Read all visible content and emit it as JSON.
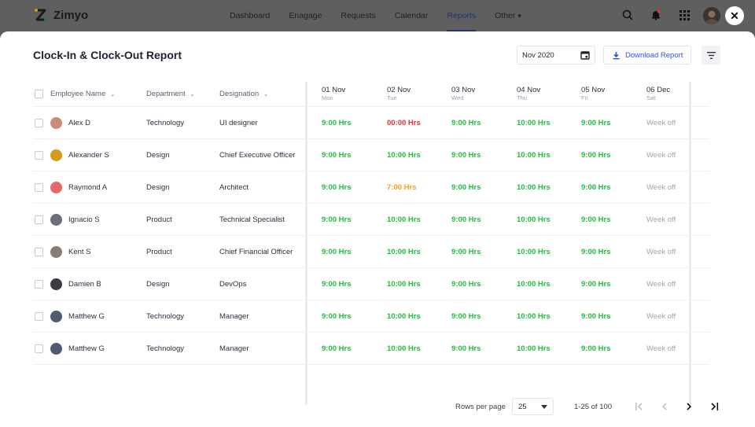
{
  "nav": {
    "brand": "Zimyo",
    "items": [
      "Dashboard",
      "Enagage",
      "Requests",
      "Calendar",
      "Reports",
      "Other"
    ],
    "active": "Reports",
    "other_caret": "⌄"
  },
  "page": {
    "title": "Clock-In & Clock-Out Report",
    "date_value": "Nov 2020",
    "download_label": "Download Report",
    "close_glyph": "✕"
  },
  "table": {
    "headers": {
      "name": "Employee Name",
      "department": "Department",
      "designation": "Designation"
    },
    "sort_glyph": "⌄",
    "days": [
      {
        "date": "01 Nov",
        "dow": "Mon"
      },
      {
        "date": "02 Nov",
        "dow": "Tue"
      },
      {
        "date": "03 Nov",
        "dow": "Wed"
      },
      {
        "date": "04 Nov",
        "dow": "Thu"
      },
      {
        "date": "05 Nov",
        "dow": "Fri"
      },
      {
        "date": "06 Dec",
        "dow": "Sat"
      }
    ],
    "rows": [
      {
        "name": "Alex D",
        "department": "Technology",
        "designation": "UI designer",
        "avatar": "#c98b7a",
        "hours": [
          "9:00 Hrs",
          "00:00 Hrs",
          "9:00 Hrs",
          "10:00 Hrs",
          "9:00 Hrs",
          "Week off"
        ],
        "status": [
          "ok",
          "red",
          "ok",
          "ok",
          "ok",
          "off"
        ]
      },
      {
        "name": "Alexander S",
        "department": "Design",
        "designation": "Chief Executive Officer",
        "avatar": "#d79a1a",
        "hours": [
          "9:00 Hrs",
          "10:00 Hrs",
          "9:00 Hrs",
          "10:00 Hrs",
          "9:00 Hrs",
          "Week off"
        ],
        "status": [
          "ok",
          "ok",
          "ok",
          "ok",
          "ok",
          "off"
        ]
      },
      {
        "name": "Raymond A",
        "department": "Design",
        "designation": "Architect",
        "avatar": "#e26a6a",
        "hours": [
          "9:00 Hrs",
          "7:00 Hrs",
          "9:00 Hrs",
          "10:00 Hrs",
          "9:00 Hrs",
          "Week off"
        ],
        "status": [
          "ok",
          "amber",
          "ok",
          "ok",
          "ok",
          "off"
        ]
      },
      {
        "name": "Ignacio S",
        "department": "Product",
        "designation": "Technical Specialist",
        "avatar": "#6c6f78",
        "hours": [
          "9:00 Hrs",
          "10:00 Hrs",
          "9:00 Hrs",
          "10:00 Hrs",
          "9:00 Hrs",
          "Week off"
        ],
        "status": [
          "ok",
          "ok",
          "ok",
          "ok",
          "ok",
          "off"
        ]
      },
      {
        "name": "Kent S",
        "department": "Product",
        "designation": "Chief Financial Officer",
        "avatar": "#8a7a70",
        "hours": [
          "9:00 Hrs",
          "10:00 Hrs",
          "9:00 Hrs",
          "10:00 Hrs",
          "9:00 Hrs",
          "Week off"
        ],
        "status": [
          "ok",
          "ok",
          "ok",
          "ok",
          "ok",
          "off"
        ]
      },
      {
        "name": "Damien B",
        "department": "Design",
        "designation": "DevOps",
        "avatar": "#3b3b40",
        "hours": [
          "9:00 Hrs",
          "10:00 Hrs",
          "9:00 Hrs",
          "10:00 Hrs",
          "9:00 Hrs",
          "Week off"
        ],
        "status": [
          "ok",
          "ok",
          "ok",
          "ok",
          "ok",
          "off"
        ]
      },
      {
        "name": "Matthew G",
        "department": "Technology",
        "designation": "Manager",
        "avatar": "#4f5b6e",
        "hours": [
          "9:00 Hrs",
          "10:00 Hrs",
          "9:00 Hrs",
          "10:00 Hrs",
          "9:00 Hrs",
          "Week off"
        ],
        "status": [
          "ok",
          "ok",
          "ok",
          "ok",
          "ok",
          "off"
        ]
      },
      {
        "name": "Matthew G",
        "department": "Technology",
        "designation": "Manager",
        "avatar": "#4f5b6e",
        "hours": [
          "9:00 Hrs",
          "10:00 Hrs",
          "9:00 Hrs",
          "10:00 Hrs",
          "9:00 Hrs",
          "Week off"
        ],
        "status": [
          "ok",
          "ok",
          "ok",
          "ok",
          "ok",
          "off"
        ]
      }
    ]
  },
  "pagination": {
    "rows_per_page_label": "Rows per page",
    "rows_per_page_value": "25",
    "range_label": "1-25 of 100"
  },
  "colors": {
    "accent": "#2f55d4",
    "ok": "#1fbe3d",
    "red": "#e3312e",
    "amber": "#eea21a",
    "nav_active": "#24307a"
  },
  "icons": [
    "search-icon",
    "bell-icon",
    "apps-grid-icon",
    "calendar-icon",
    "download-icon",
    "filter-icon",
    "first-page-icon",
    "prev-page-icon",
    "next-page-icon",
    "last-page-icon"
  ]
}
